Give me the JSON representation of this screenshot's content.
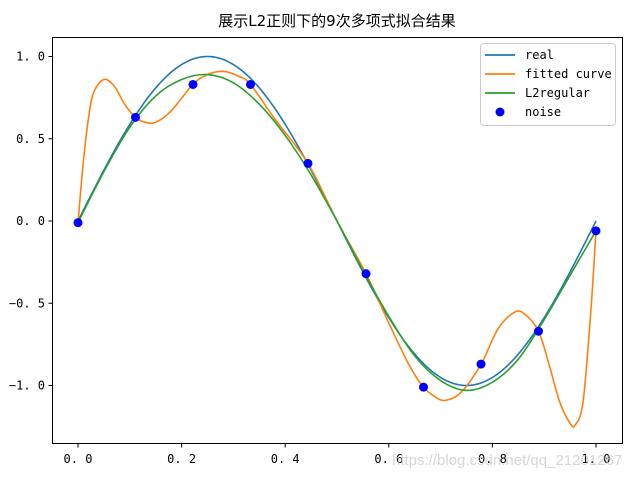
{
  "chart_data": {
    "type": "line",
    "title": "展示L2正则下的9次多项式拟合结果",
    "xlabel": "",
    "ylabel": "",
    "xlim": [
      -0.05,
      1.05
    ],
    "ylim": [
      -1.35,
      1.12
    ],
    "grid": false,
    "legend_position": "upper right",
    "x_ticks": [
      "0.0",
      "0.2",
      "0.4",
      "0.6",
      "0.8",
      "1.0"
    ],
    "y_ticks": [
      "1.0",
      "0.5",
      "0.0",
      "-0.5",
      "-1.0"
    ],
    "series": [
      {
        "name": "real",
        "kind": "line",
        "color": "#1f77b4",
        "function": "sin(2*pi*x)",
        "x": [
          0.0,
          0.05,
          0.1,
          0.15,
          0.2,
          0.25,
          0.3,
          0.35,
          0.4,
          0.45,
          0.5,
          0.55,
          0.6,
          0.65,
          0.7,
          0.75,
          0.8,
          0.85,
          0.9,
          0.95,
          1.0
        ],
        "values": [
          0.0,
          0.309,
          0.588,
          0.809,
          0.951,
          1.0,
          0.951,
          0.809,
          0.588,
          0.309,
          0.0,
          -0.309,
          -0.588,
          -0.809,
          -0.951,
          -1.0,
          -0.951,
          -0.809,
          -0.588,
          -0.309,
          0.0
        ]
      },
      {
        "name": "fitted curve",
        "kind": "line",
        "color": "#ff7f0e",
        "x": [
          0.0,
          0.01,
          0.02,
          0.03,
          0.05,
          0.07,
          0.09,
          0.111,
          0.13,
          0.15,
          0.18,
          0.222,
          0.25,
          0.28,
          0.31,
          0.333,
          0.38,
          0.444,
          0.5,
          0.556,
          0.6,
          0.64,
          0.667,
          0.69,
          0.71,
          0.74,
          0.778,
          0.81,
          0.84,
          0.86,
          0.889,
          0.91,
          0.93,
          0.95,
          0.96,
          0.975,
          0.99,
          1.0
        ],
        "values": [
          -0.01,
          0.35,
          0.62,
          0.78,
          0.86,
          0.82,
          0.71,
          0.63,
          0.6,
          0.6,
          0.67,
          0.83,
          0.89,
          0.91,
          0.88,
          0.83,
          0.62,
          0.35,
          0.0,
          -0.32,
          -0.62,
          -0.88,
          -1.01,
          -1.07,
          -1.09,
          -1.04,
          -0.87,
          -0.66,
          -0.56,
          -0.56,
          -0.67,
          -0.88,
          -1.1,
          -1.23,
          -1.24,
          -1.1,
          -0.55,
          -0.06
        ]
      },
      {
        "name": "L2regular",
        "kind": "line",
        "color": "#2ca02c",
        "x": [
          0.0,
          0.05,
          0.1,
          0.15,
          0.2,
          0.25,
          0.3,
          0.35,
          0.4,
          0.45,
          0.5,
          0.55,
          0.6,
          0.65,
          0.7,
          0.75,
          0.8,
          0.85,
          0.9,
          0.95,
          1.0
        ],
        "values": [
          -0.01,
          0.3,
          0.57,
          0.76,
          0.86,
          0.89,
          0.84,
          0.71,
          0.52,
          0.28,
          0.0,
          -0.3,
          -0.58,
          -0.82,
          -0.97,
          -1.03,
          -0.98,
          -0.84,
          -0.6,
          -0.33,
          -0.06
        ]
      },
      {
        "name": "noise",
        "kind": "scatter",
        "color": "#0000ff",
        "x": [
          0.0,
          0.111,
          0.222,
          0.333,
          0.444,
          0.556,
          0.667,
          0.778,
          0.889,
          1.0
        ],
        "values": [
          -0.01,
          0.63,
          0.83,
          0.83,
          0.35,
          -0.32,
          -1.01,
          -0.87,
          -0.67,
          -0.06
        ]
      }
    ]
  },
  "legend": {
    "items": [
      {
        "label": "real",
        "marker": "line",
        "color": "#1f77b4"
      },
      {
        "label": "fitted curve",
        "marker": "line",
        "color": "#ff7f0e"
      },
      {
        "label": "L2regular",
        "marker": "line",
        "color": "#2ca02c"
      },
      {
        "label": "noise",
        "marker": "dot",
        "color": "#0000ff"
      }
    ]
  },
  "watermark": "https://blog.csdn.net/qq_21201267"
}
